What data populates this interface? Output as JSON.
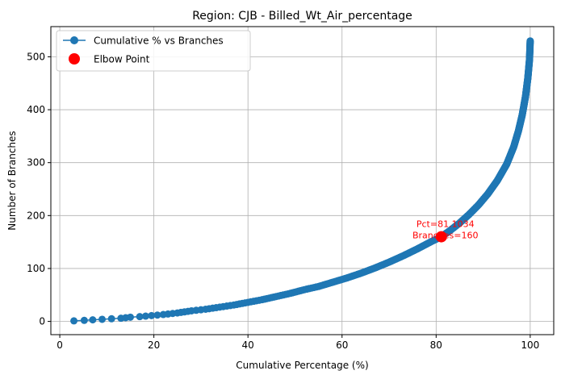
{
  "chart_data": {
    "type": "line",
    "title": "Region: CJB - Billed_Wt_Air_percentage",
    "xlabel": "Cumulative Percentage (%)",
    "ylabel": "Number of Branches",
    "xlim": [
      -1.9,
      105.0
    ],
    "ylim": [
      -25,
      557
    ],
    "xticks": [
      0,
      20,
      40,
      60,
      80,
      100
    ],
    "yticks": [
      0,
      100,
      200,
      300,
      400,
      500
    ],
    "grid": true,
    "legend_position": "top-left",
    "series": [
      {
        "name": "Cumulative % vs Branches",
        "marker": "circle",
        "color": "#1f77b4",
        "total_branches": 530,
        "curve_points": [
          [
            3.0,
            1
          ],
          [
            5.2,
            2
          ],
          [
            7.0,
            3
          ],
          [
            9.0,
            4
          ],
          [
            11.0,
            5
          ],
          [
            13.0,
            6
          ],
          [
            15.0,
            8
          ],
          [
            17.0,
            9
          ],
          [
            19.5,
            11
          ],
          [
            22.0,
            13
          ],
          [
            25.0,
            16
          ],
          [
            28.0,
            20
          ],
          [
            31.0,
            23
          ],
          [
            34.0,
            27
          ],
          [
            37.0,
            31
          ],
          [
            40.0,
            36
          ],
          [
            43.0,
            41
          ],
          [
            46.0,
            47
          ],
          [
            49.0,
            53
          ],
          [
            52.0,
            60
          ],
          [
            55.0,
            66
          ],
          [
            58.0,
            74
          ],
          [
            61.0,
            82
          ],
          [
            64.0,
            91
          ],
          [
            67.0,
            101
          ],
          [
            70.0,
            112
          ],
          [
            73.0,
            124
          ],
          [
            76.0,
            137
          ],
          [
            79.0,
            151
          ],
          [
            81.1,
            160
          ],
          [
            83.0,
            172
          ],
          [
            85.0,
            186
          ],
          [
            87.0,
            202
          ],
          [
            89.0,
            220
          ],
          [
            91.0,
            241
          ],
          [
            93.0,
            266
          ],
          [
            95.0,
            297
          ],
          [
            96.5,
            330
          ],
          [
            97.5,
            360
          ],
          [
            98.3,
            390
          ],
          [
            99.0,
            425
          ],
          [
            99.5,
            460
          ],
          [
            99.85,
            495
          ],
          [
            100.0,
            530
          ]
        ]
      },
      {
        "name": "Elbow Point",
        "marker": "circle",
        "color": "#ff0000",
        "points": [
          [
            81.1034,
            160
          ]
        ]
      }
    ],
    "annotations": [
      {
        "text": "Pct=81.1034",
        "x": 81.1034,
        "y": 160,
        "color": "#ff0000"
      },
      {
        "text": "Branches=160",
        "x": 81.1034,
        "y": 160,
        "color": "#ff0000"
      }
    ]
  }
}
